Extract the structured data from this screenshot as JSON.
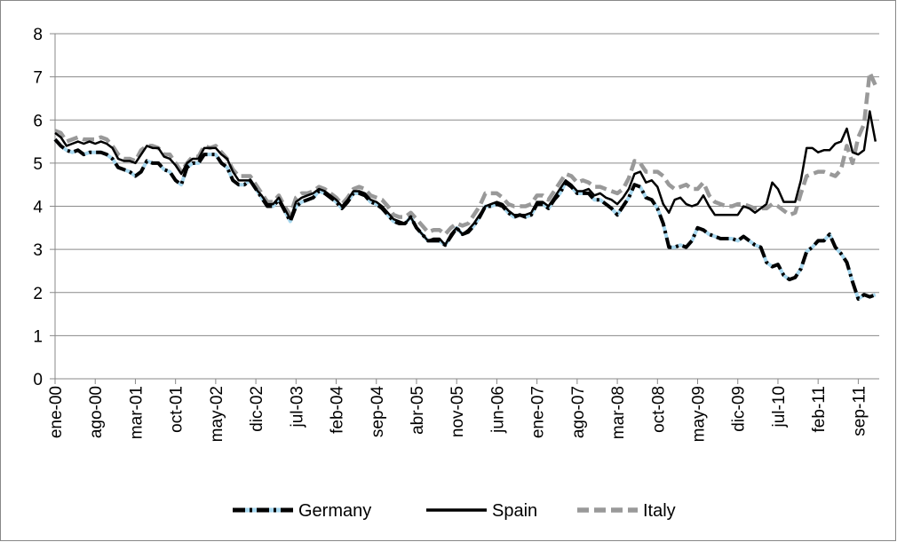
{
  "chart_data": {
    "type": "line",
    "categories": [
      "ene-00",
      null,
      null,
      null,
      null,
      null,
      null,
      "ago-00",
      null,
      null,
      null,
      null,
      null,
      null,
      "mar-01",
      null,
      null,
      null,
      null,
      null,
      null,
      "oct-01",
      null,
      null,
      null,
      null,
      null,
      null,
      "may-02",
      null,
      null,
      null,
      null,
      null,
      null,
      "dic-02",
      null,
      null,
      null,
      null,
      null,
      null,
      "jul-03",
      null,
      null,
      null,
      null,
      null,
      null,
      "feb-04",
      null,
      null,
      null,
      null,
      null,
      null,
      "sep-04",
      null,
      null,
      null,
      null,
      null,
      null,
      "abr-05",
      null,
      null,
      null,
      null,
      null,
      null,
      "nov-05",
      null,
      null,
      null,
      null,
      null,
      null,
      "jun-06",
      null,
      null,
      null,
      null,
      null,
      null,
      "ene-07",
      null,
      null,
      null,
      null,
      null,
      null,
      "ago-07",
      null,
      null,
      null,
      null,
      null,
      null,
      "mar-08",
      null,
      null,
      null,
      null,
      null,
      null,
      "oct-08",
      null,
      null,
      null,
      null,
      null,
      null,
      "may-09",
      null,
      null,
      null,
      null,
      null,
      null,
      "dic-09",
      null,
      null,
      null,
      null,
      null,
      null,
      "jul-10",
      null,
      null,
      null,
      null,
      null,
      null,
      "feb-11",
      null,
      null,
      null,
      null,
      null,
      null,
      "sep-11",
      null,
      null,
      null
    ],
    "series": [
      {
        "name": "Germany",
        "color": "#000000",
        "marker_color": "#a8d8ef",
        "line_style": "dash-dot",
        "values": [
          5.55,
          5.4,
          5.3,
          5.25,
          5.3,
          5.2,
          5.25,
          5.25,
          5.25,
          5.2,
          5.1,
          4.9,
          4.85,
          4.8,
          4.7,
          4.8,
          5.05,
          5.0,
          5.0,
          4.85,
          4.8,
          4.6,
          4.5,
          4.9,
          5.0,
          5.0,
          5.2,
          5.2,
          5.2,
          5.0,
          4.9,
          4.6,
          4.5,
          4.5,
          4.6,
          4.4,
          4.2,
          4.0,
          4.0,
          4.15,
          3.9,
          3.65,
          4.0,
          4.1,
          4.15,
          4.2,
          4.35,
          4.3,
          4.2,
          4.1,
          3.95,
          4.1,
          4.3,
          4.3,
          4.25,
          4.1,
          4.05,
          3.95,
          3.8,
          3.65,
          3.6,
          3.6,
          3.75,
          3.5,
          3.35,
          3.2,
          3.2,
          3.2,
          3.1,
          3.3,
          3.5,
          3.35,
          3.4,
          3.55,
          3.75,
          4.0,
          4.0,
          4.05,
          4.0,
          3.85,
          3.75,
          3.8,
          3.75,
          3.8,
          4.05,
          4.05,
          3.95,
          4.15,
          4.3,
          4.55,
          4.45,
          4.3,
          4.3,
          4.3,
          4.15,
          4.15,
          4.05,
          3.95,
          3.8,
          4.0,
          4.2,
          4.5,
          4.45,
          4.2,
          4.15,
          3.95,
          3.6,
          3.05,
          3.05,
          3.1,
          3.05,
          3.2,
          3.5,
          3.45,
          3.35,
          3.3,
          3.25,
          3.25,
          3.25,
          3.2,
          3.3,
          3.2,
          3.1,
          3.05,
          2.7,
          2.6,
          2.65,
          2.4,
          2.3,
          2.35,
          2.55,
          2.95,
          3.05,
          3.2,
          3.2,
          3.35,
          3.05,
          2.9,
          2.7,
          2.25,
          1.85,
          1.95,
          1.9,
          1.95
        ]
      },
      {
        "name": "Spain",
        "color": "#000000",
        "line_style": "solid",
        "values": [
          5.7,
          5.6,
          5.4,
          5.45,
          5.5,
          5.45,
          5.5,
          5.45,
          5.5,
          5.45,
          5.35,
          5.1,
          5.05,
          5.05,
          5.0,
          5.2,
          5.4,
          5.35,
          5.35,
          5.15,
          5.1,
          4.95,
          4.75,
          5.0,
          5.1,
          5.1,
          5.35,
          5.35,
          5.35,
          5.2,
          5.1,
          4.8,
          4.6,
          4.6,
          4.6,
          4.4,
          4.25,
          4.05,
          4.05,
          4.2,
          3.95,
          3.7,
          4.1,
          4.2,
          4.25,
          4.3,
          4.4,
          4.35,
          4.25,
          4.15,
          4.0,
          4.15,
          4.35,
          4.35,
          4.3,
          4.15,
          4.1,
          4.0,
          3.85,
          3.7,
          3.65,
          3.6,
          3.75,
          3.5,
          3.35,
          3.2,
          3.25,
          3.25,
          3.1,
          3.35,
          3.5,
          3.35,
          3.45,
          3.6,
          3.8,
          4.0,
          4.05,
          4.1,
          4.05,
          3.9,
          3.8,
          3.8,
          3.8,
          3.85,
          4.1,
          4.1,
          4.0,
          4.2,
          4.4,
          4.6,
          4.5,
          4.35,
          4.35,
          4.4,
          4.25,
          4.3,
          4.2,
          4.15,
          4.05,
          4.2,
          4.4,
          4.75,
          4.8,
          4.55,
          4.6,
          4.45,
          4.05,
          3.85,
          4.15,
          4.2,
          4.05,
          4.0,
          4.05,
          4.25,
          4.0,
          3.8,
          3.8,
          3.8,
          3.8,
          3.8,
          4.0,
          3.95,
          3.85,
          3.95,
          4.05,
          4.55,
          4.4,
          4.1,
          4.1,
          4.1,
          4.6,
          5.35,
          5.35,
          5.25,
          5.3,
          5.3,
          5.45,
          5.5,
          5.8,
          5.25,
          5.2,
          5.3,
          6.2,
          5.5
        ]
      },
      {
        "name": "Italy",
        "color": "#999999",
        "line_style": "dash",
        "values": [
          5.75,
          5.7,
          5.5,
          5.55,
          5.6,
          5.55,
          5.55,
          5.55,
          5.6,
          5.55,
          5.4,
          5.2,
          5.1,
          5.1,
          5.05,
          5.3,
          5.4,
          5.4,
          5.35,
          5.2,
          5.2,
          5.0,
          4.8,
          5.0,
          5.15,
          5.15,
          5.4,
          5.35,
          5.4,
          5.25,
          5.1,
          4.85,
          4.7,
          4.7,
          4.7,
          4.5,
          4.3,
          4.1,
          4.1,
          4.25,
          4.0,
          3.8,
          4.2,
          4.3,
          4.3,
          4.35,
          4.45,
          4.4,
          4.3,
          4.2,
          4.05,
          4.2,
          4.4,
          4.45,
          4.4,
          4.25,
          4.2,
          4.15,
          4.0,
          3.8,
          3.75,
          3.75,
          3.85,
          3.7,
          3.55,
          3.4,
          3.45,
          3.45,
          3.35,
          3.5,
          3.6,
          3.55,
          3.6,
          3.8,
          4.0,
          4.3,
          4.3,
          4.3,
          4.2,
          4.05,
          4.0,
          4.0,
          4.0,
          4.05,
          4.25,
          4.25,
          4.15,
          4.35,
          4.55,
          4.75,
          4.7,
          4.55,
          4.6,
          4.55,
          4.45,
          4.45,
          4.4,
          4.35,
          4.3,
          4.4,
          4.65,
          5.05,
          5.0,
          4.8,
          4.8,
          4.8,
          4.7,
          4.5,
          4.4,
          4.45,
          4.5,
          4.4,
          4.4,
          4.55,
          4.25,
          4.1,
          4.05,
          4.0,
          4.0,
          4.05,
          4.05,
          4.0,
          3.95,
          3.95,
          3.95,
          4.05,
          4.0,
          3.9,
          3.8,
          3.85,
          4.3,
          4.7,
          4.75,
          4.8,
          4.8,
          4.75,
          4.7,
          4.85,
          5.4,
          5.0,
          5.6,
          5.9,
          7.1,
          6.8
        ]
      }
    ],
    "ylim": [
      0,
      8
    ],
    "yticks": [
      0,
      1,
      2,
      3,
      4,
      5,
      6,
      7,
      8
    ],
    "grid": true,
    "legend": "bottom"
  }
}
